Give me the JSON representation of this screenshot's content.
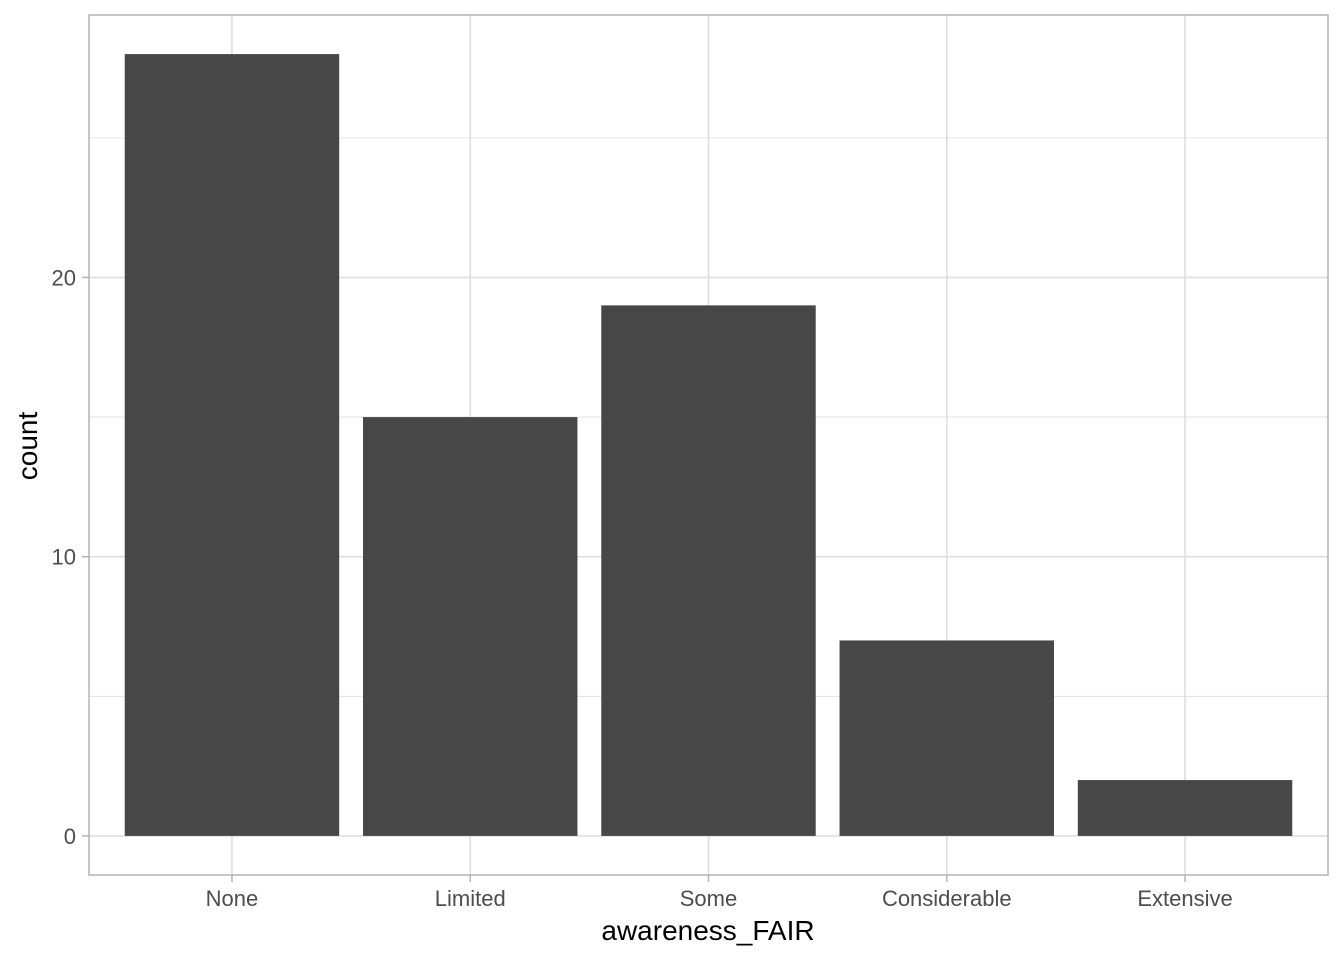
{
  "chart_data": {
    "type": "bar",
    "categories": [
      "None",
      "Limited",
      "Some",
      "Considerable",
      "Extensive"
    ],
    "values": [
      28,
      15,
      19,
      7,
      2
    ],
    "xlabel": "awareness_FAIR",
    "ylabel": "count",
    "ylim": [
      -1.4,
      29.4
    ],
    "yticks": [
      0,
      10,
      20
    ],
    "yticks_minor": [
      5,
      15,
      25
    ],
    "grid": true,
    "bar_color": "#474747",
    "grid_color": "#dedede",
    "panel_border_color": "#b3b3b3"
  }
}
